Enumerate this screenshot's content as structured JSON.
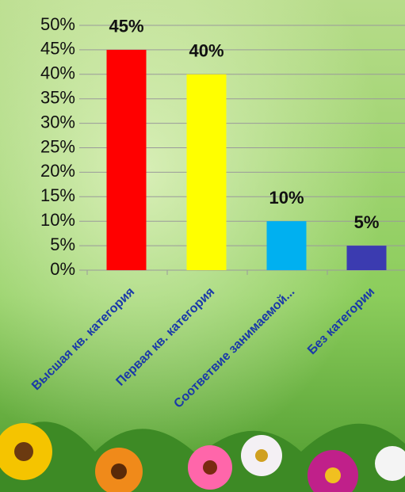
{
  "chart_data": {
    "type": "bar",
    "categories": [
      "Высшая кв. категория",
      "Первая кв. категория",
      "Соответвие занимаемой...",
      "Без категории"
    ],
    "values": [
      45,
      40,
      10,
      5
    ],
    "value_labels": [
      "45%",
      "40%",
      "10%",
      "5%"
    ],
    "colors": [
      "#ff0000",
      "#ffff00",
      "#00b0f0",
      "#3b3bb0"
    ],
    "ylim": [
      0,
      50
    ],
    "yticks": [
      {
        "value": 0,
        "label": "0%"
      },
      {
        "value": 5,
        "label": "5%"
      },
      {
        "value": 10,
        "label": "10%"
      },
      {
        "value": 15,
        "label": "15%"
      },
      {
        "value": 20,
        "label": "20%"
      },
      {
        "value": 25,
        "label": "25%"
      },
      {
        "value": 30,
        "label": "30%"
      },
      {
        "value": 35,
        "label": "35%"
      },
      {
        "value": 40,
        "label": "40%"
      },
      {
        "value": 45,
        "label": "45%"
      },
      {
        "value": 50,
        "label": "50%"
      }
    ],
    "grid": true
  }
}
